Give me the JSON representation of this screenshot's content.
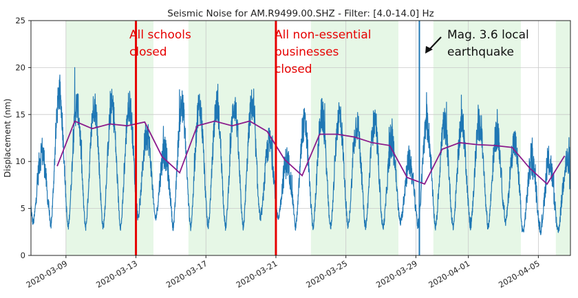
{
  "chart_data": {
    "type": "line",
    "title": "Seismic Noise for AM.R9499.00.SHZ - Filter: [4.0-14.0] Hz",
    "xlabel": "",
    "ylabel": "Displacement (nm)",
    "x_range": [
      "2020-03-07",
      "2020-04-06"
    ],
    "ylim": [
      0,
      25
    ],
    "yticks": [
      0,
      5,
      10,
      15,
      20,
      25
    ],
    "xticks": [
      "2020-03-09",
      "2020-03-13",
      "2020-03-17",
      "2020-03-21",
      "2020-03-25",
      "2020-03-29",
      "2020-04-01",
      "2020-04-05"
    ],
    "grid": true,
    "colors": {
      "noise": "#1f77b4",
      "average": "#8b1a8b",
      "event_lines": "#e60000",
      "earthquake_line": "#1f77b4",
      "weekday_shading": "#e6f7e6"
    },
    "weekday_bands": [
      [
        "2020-03-09",
        "2020-03-14"
      ],
      [
        "2020-03-16",
        "2020-03-21"
      ],
      [
        "2020-03-23",
        "2020-03-28"
      ],
      [
        "2020-03-30",
        "2020-04-04"
      ],
      [
        "2020-04-06",
        "2020-04-07"
      ]
    ],
    "series": [
      {
        "kind": "noise",
        "daily_peaks": [
          11,
          17,
          16,
          16,
          16,
          16,
          13,
          11,
          16,
          16,
          16,
          16,
          16,
          12,
          10,
          14,
          15,
          15,
          14,
          14,
          12,
          10,
          14,
          14,
          14,
          14,
          13,
          12,
          10
        ],
        "night_lows": [
          3.5,
          3,
          3,
          3,
          3,
          3,
          4,
          4,
          3,
          3,
          3,
          3,
          3,
          4,
          4,
          3,
          3,
          3,
          3,
          3,
          3,
          3.5,
          3,
          3,
          3,
          3,
          3,
          3.5,
          2.5
        ],
        "spike": {
          "date": "2020-03-09",
          "value": 20
        }
      },
      {
        "kind": "daily_average",
        "x": [
          "2020-03-08",
          "2020-03-09",
          "2020-03-10",
          "2020-03-11",
          "2020-03-12",
          "2020-03-13",
          "2020-03-14",
          "2020-03-15",
          "2020-03-16",
          "2020-03-17",
          "2020-03-18",
          "2020-03-19",
          "2020-03-20",
          "2020-03-21",
          "2020-03-22",
          "2020-03-23",
          "2020-03-24",
          "2020-03-25",
          "2020-03-26",
          "2020-03-27",
          "2020-03-28",
          "2020-03-29",
          "2020-03-30",
          "2020-03-31",
          "2020-04-01",
          "2020-04-02",
          "2020-04-03",
          "2020-04-04",
          "2020-04-05",
          "2020-04-06"
        ],
        "values": [
          9.5,
          14.3,
          13.5,
          14.0,
          13.8,
          14.2,
          10.5,
          8.8,
          13.8,
          14.3,
          13.8,
          14.3,
          13.2,
          10.2,
          8.5,
          12.9,
          12.9,
          12.6,
          12.0,
          11.7,
          8.3,
          7.6,
          11.3,
          12.0,
          11.8,
          11.7,
          11.5,
          9.3,
          7.6,
          10.6
        ]
      }
    ],
    "event_lines": [
      {
        "date": "2020-03-13",
        "color": "#e60000"
      },
      {
        "date": "2020-03-21",
        "color": "#e60000"
      },
      {
        "date": "2020-03-29",
        "color": "#1f77b4"
      }
    ],
    "annotations": [
      {
        "lines": [
          "All schools",
          "closed"
        ],
        "color": "#e60000"
      },
      {
        "lines": [
          "All non-essential",
          "businesses",
          "closed"
        ],
        "color": "#e60000"
      },
      {
        "lines": [
          "Mag. 3.6 local",
          "earthquake"
        ],
        "color": "#111111"
      }
    ]
  }
}
